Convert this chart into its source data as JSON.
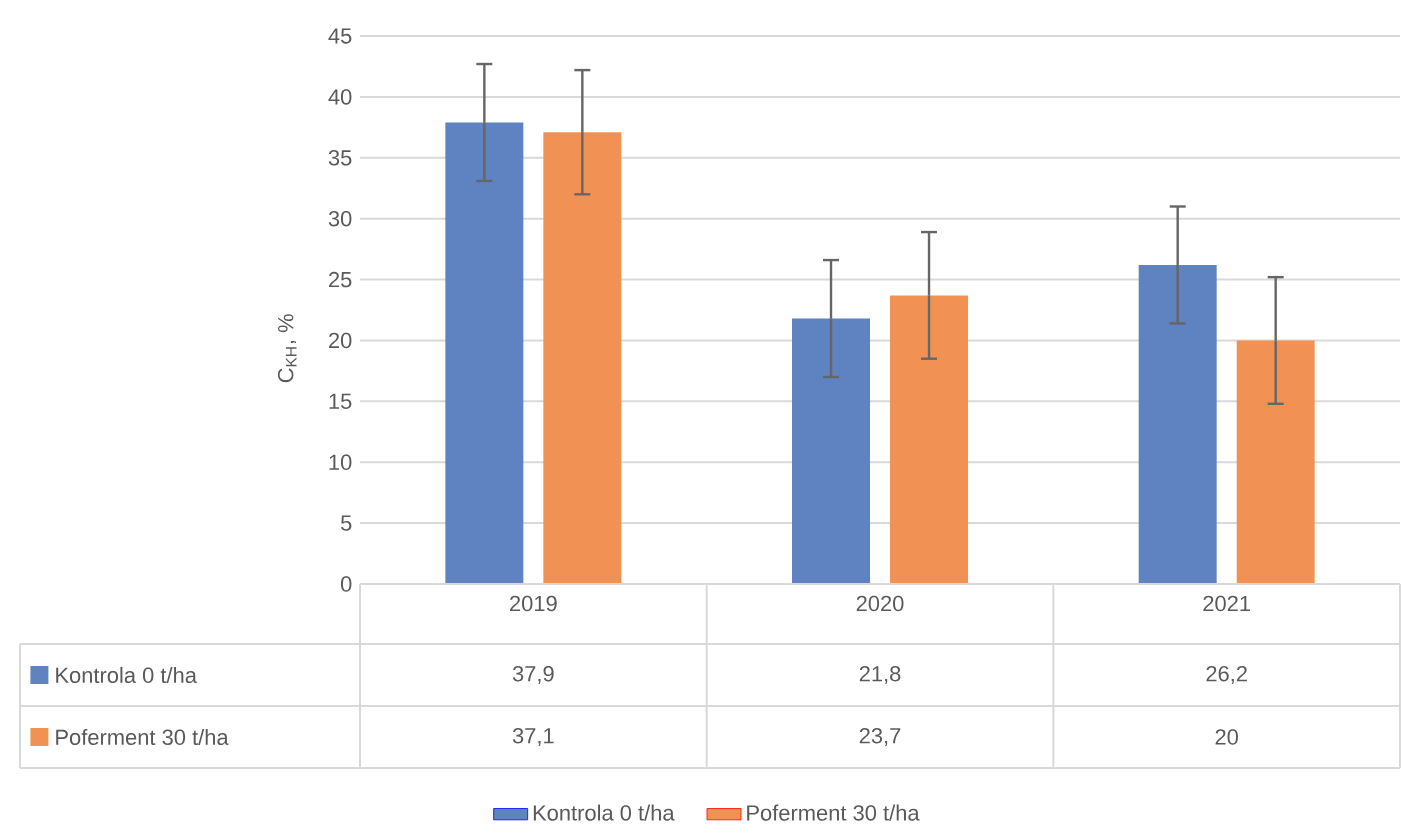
{
  "chart_data": {
    "type": "bar",
    "ylabel": "C$_{KH}$, %",
    "categories": [
      "2019",
      "2020",
      "2021"
    ],
    "series": [
      {
        "name": "Kontrola 0 t/ha",
        "color": "#5f82c0",
        "values": [
          37.9,
          21.8,
          26.2
        ],
        "errors": [
          4.8,
          4.8,
          4.8
        ],
        "value_labels": [
          "37,9",
          "21,8",
          "26,2"
        ]
      },
      {
        "name": "Poferment 30 t/ha",
        "color": "#f19254",
        "values": [
          37.1,
          23.7,
          20
        ],
        "errors": [
          5.1,
          5.2,
          5.2
        ],
        "value_labels": [
          "37,1",
          "23,7",
          "20"
        ]
      }
    ],
    "ylim": [
      0,
      45
    ],
    "yticks": [
      0,
      5,
      10,
      15,
      20,
      25,
      30,
      35,
      40,
      45
    ],
    "grid": "y",
    "legend": "bottom"
  }
}
